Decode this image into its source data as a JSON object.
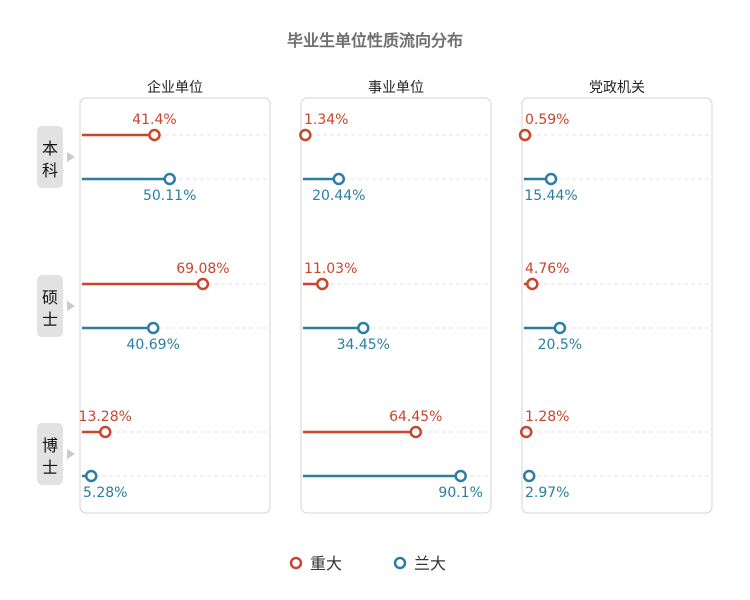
{
  "chart_data": {
    "type": "lollipop",
    "title": "毕业生单位性质流向分布",
    "columns": [
      "企业单位",
      "事业单位",
      "党政机关"
    ],
    "rows": [
      "本科",
      "硕士",
      "博士"
    ],
    "legend": {
      "placement": "bottom-center",
      "items": [
        "重大",
        "兰大"
      ]
    },
    "colors": {
      "重大": "#c8462c",
      "兰大": "#2a7ea3"
    },
    "xlim": [
      0,
      100
    ],
    "series": [
      {
        "name": "重大",
        "values": {
          "本科": [
            41.4,
            1.34,
            0.59
          ],
          "硕士": [
            69.08,
            11.03,
            4.76
          ],
          "博士": [
            13.28,
            64.45,
            1.28
          ]
        },
        "labels": {
          "本科": [
            "41.4%",
            "1.34%",
            "0.59%"
          ],
          "硕士": [
            "69.08%",
            "11.03%",
            "4.76%"
          ],
          "博士": [
            "13.28%",
            "64.45%",
            "1.28%"
          ]
        }
      },
      {
        "name": "兰大",
        "values": {
          "本科": [
            50.11,
            20.44,
            15.44
          ],
          "硕士": [
            40.69,
            34.45,
            20.5
          ],
          "博士": [
            5.28,
            90.1,
            2.97
          ]
        },
        "labels": {
          "本科": [
            "50.11%",
            "20.44%",
            "15.44%"
          ],
          "硕士": [
            "40.69%",
            "34.45%",
            "20.5%"
          ],
          "博士": [
            "5.28%",
            "90.1%",
            "2.97%"
          ]
        }
      }
    ]
  }
}
